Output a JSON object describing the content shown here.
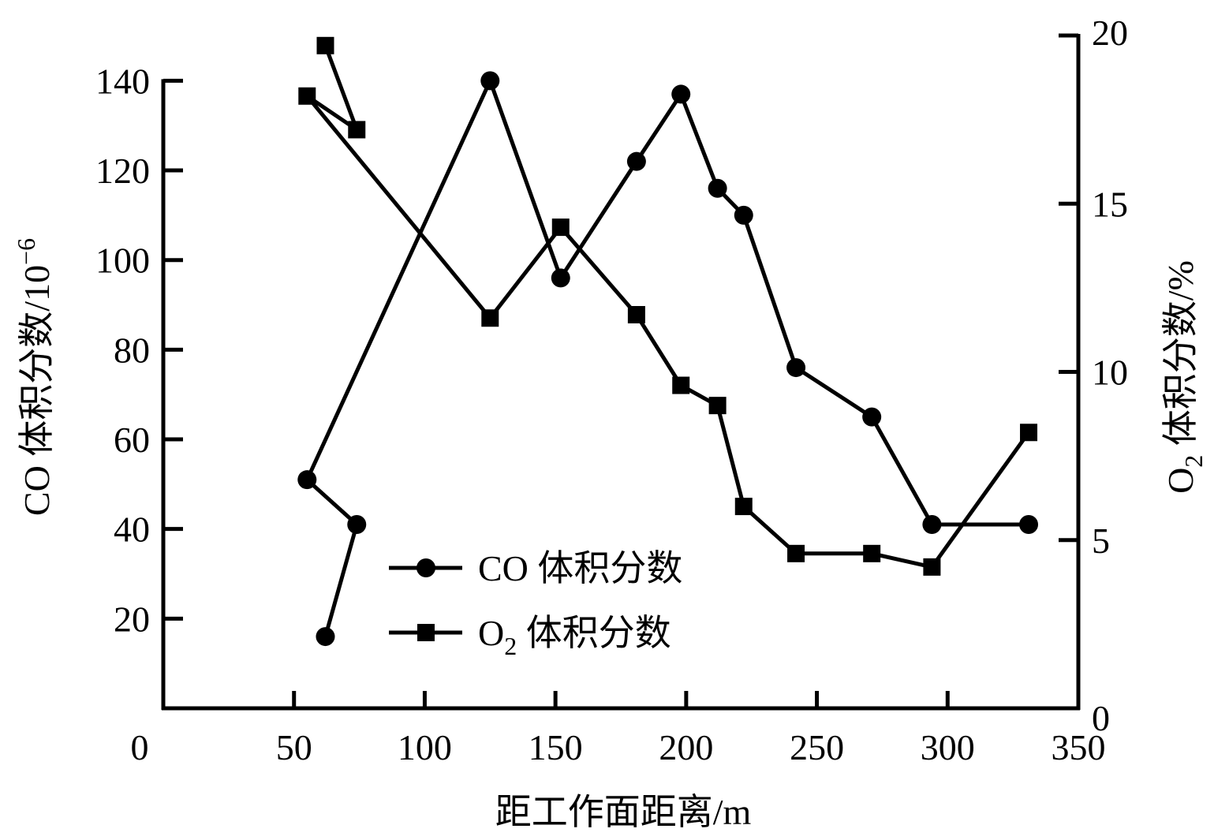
{
  "chart_data": {
    "type": "line",
    "title": "",
    "xlabel": "距工作面距离/m",
    "ylabel_left": "CO 体积分数/10",
    "ylabel_left_exponent": "−6",
    "ylabel_right_prefix": "O",
    "ylabel_right_subscript": "2",
    "ylabel_right_suffix": " 体积分数/%",
    "xlim": [
      0,
      350
    ],
    "ylim_left": [
      0,
      150
    ],
    "ylim_right": [
      0,
      20
    ],
    "x_ticks": [
      0,
      50,
      100,
      150,
      200,
      250,
      300,
      350
    ],
    "y_left_ticks": [
      20,
      40,
      60,
      80,
      100,
      120,
      140
    ],
    "y_right_ticks": [
      0,
      5,
      10,
      15,
      20
    ],
    "grid": false,
    "legend_position": "lower-center-left",
    "series": [
      {
        "name": "CO 体积分数",
        "legend_prefix": "CO",
        "legend_subscript": "",
        "legend_suffix": " 体积分数",
        "axis": "left",
        "marker": "circle",
        "color": "#000000",
        "points": [
          {
            "x": 62,
            "y": 16
          },
          {
            "x": 74,
            "y": 41
          },
          {
            "x": 55,
            "y": 51
          },
          {
            "x": 125,
            "y": 140
          },
          {
            "x": 152,
            "y": 96
          },
          {
            "x": 181,
            "y": 122
          },
          {
            "x": 198,
            "y": 137
          },
          {
            "x": 212,
            "y": 116
          },
          {
            "x": 222,
            "y": 110
          },
          {
            "x": 242,
            "y": 76
          },
          {
            "x": 271,
            "y": 65
          },
          {
            "x": 294,
            "y": 41
          },
          {
            "x": 331,
            "y": 41
          }
        ]
      },
      {
        "name": "O2 体积分数",
        "legend_prefix": "O",
        "legend_subscript": "2",
        "legend_suffix": " 体积分数",
        "axis": "right",
        "marker": "square",
        "color": "#000000",
        "points": [
          {
            "x": 62,
            "y": 19.7
          },
          {
            "x": 74,
            "y": 17.2
          },
          {
            "x": 55,
            "y": 18.2
          },
          {
            "x": 125,
            "y": 11.6
          },
          {
            "x": 152,
            "y": 14.3
          },
          {
            "x": 181,
            "y": 11.7
          },
          {
            "x": 198,
            "y": 9.6
          },
          {
            "x": 212,
            "y": 9.0
          },
          {
            "x": 222,
            "y": 6.0
          },
          {
            "x": 242,
            "y": 4.6
          },
          {
            "x": 271,
            "y": 4.6
          },
          {
            "x": 294,
            "y": 4.2
          },
          {
            "x": 331,
            "y": 8.2
          }
        ]
      }
    ]
  }
}
